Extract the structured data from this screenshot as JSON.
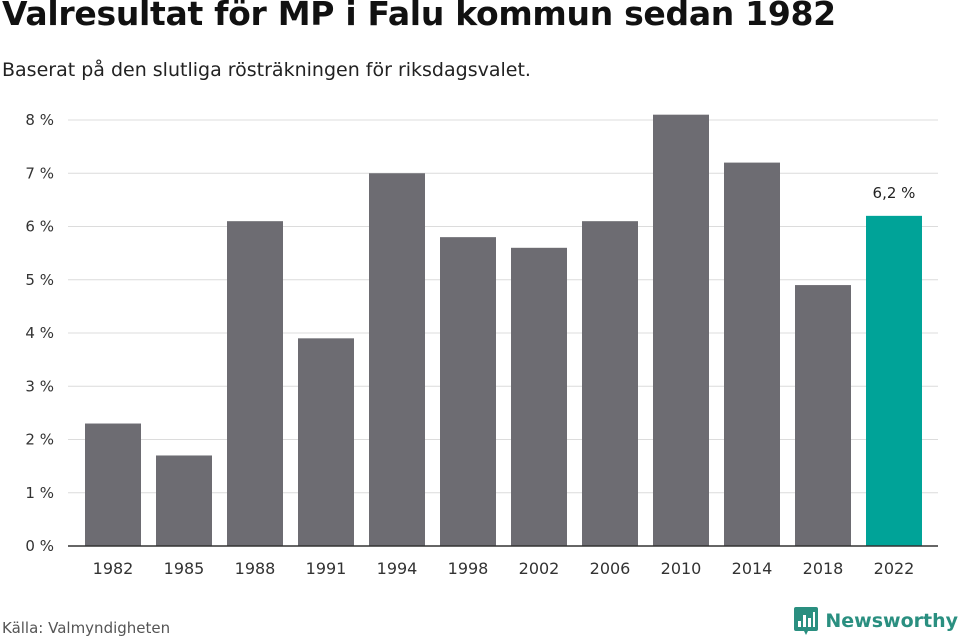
{
  "title": "Valresultat för MP i Falu kommun sedan 1982",
  "subtitle": "Baserat på den slutliga rösträkningen för riksdagsvalet.",
  "source": "Källa: Valmyndigheten",
  "brand": {
    "name": "Newsworthy",
    "icon": "newsworthy-logo-icon"
  },
  "colors": {
    "bar": "#6d6c72",
    "highlight": "#00a398",
    "grid": "#dcdcdc",
    "axis": "#333333",
    "brand": "#2a8f80"
  },
  "chart_data": {
    "type": "bar",
    "categories": [
      "1982",
      "1985",
      "1988",
      "1991",
      "1994",
      "1998",
      "2002",
      "2006",
      "2010",
      "2014",
      "2018",
      "2022"
    ],
    "values": [
      2.3,
      1.7,
      6.1,
      3.9,
      7.0,
      5.8,
      5.6,
      6.1,
      8.1,
      7.2,
      4.9,
      6.2
    ],
    "highlight_index": 11,
    "data_labels": [
      {
        "index": 11,
        "text": "6,2 %"
      }
    ],
    "ylim": [
      0,
      8
    ],
    "yticks": [
      {
        "value": 0,
        "label": "0 %"
      },
      {
        "value": 1,
        "label": "1 %"
      },
      {
        "value": 2,
        "label": "2 %"
      },
      {
        "value": 3,
        "label": "3 %"
      },
      {
        "value": 4,
        "label": "4 %"
      },
      {
        "value": 5,
        "label": "5 %"
      },
      {
        "value": 6,
        "label": "6 %"
      },
      {
        "value": 7,
        "label": "7 %"
      },
      {
        "value": 8,
        "label": "8 %"
      }
    ],
    "grid": true,
    "xlabel": "",
    "ylabel": ""
  }
}
